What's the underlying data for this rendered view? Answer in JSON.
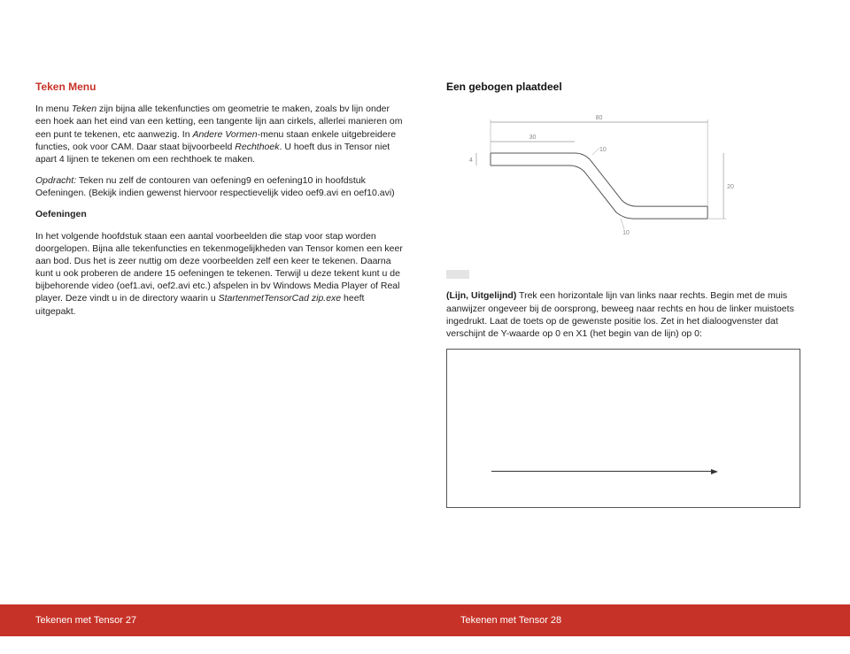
{
  "left": {
    "title": "Teken Menu",
    "p1_a": "In menu ",
    "p1_i1": "Teken",
    "p1_b": " zijn bijna alle tekenfuncties om geometrie te maken, zoals bv lijn onder een hoek aan het eind van een ketting, een tangente lijn aan cirkels, allerlei manieren om een punt te tekenen, etc aanwezig. In ",
    "p1_i2": "Andere Vormen",
    "p1_c": "-menu staan enkele uitgebreidere functies, ook voor CAM. Daar staat bijvoorbeeld ",
    "p1_i3": "Rechthoek",
    "p1_d": ". U hoeft dus in Tensor niet apart 4 lijnen te tekenen om een rechthoek te maken.",
    "p2_i": "Opdracht:",
    "p2": " Teken nu zelf de contouren van oefening9 en oefening10 in hoofdstuk Oefeningen. (Bekijk indien gewenst hiervoor respectievelijk video oef9.avi en oef10.avi)",
    "sub": "Oefeningen",
    "p3_a": "In het volgende hoofdstuk staan een aantal voorbeelden die stap voor stap worden doorgelopen. Bijna alle tekenfuncties en tekenmogelijkheden van Tensor komen een keer aan bod. Dus het is zeer nuttig om deze voorbeelden zelf een keer te tekenen. Daarna kunt u ook proberen de andere 15 oefeningen te tekenen. Terwijl u deze tekent kunt u de bijbehorende video (oef1.avi, oef2.avi etc.) afspelen in bv Windows Media Player of Real player. Deze vindt u in de directory waarin u ",
    "p3_i": "StartenmetTensorCad zip.exe",
    "p3_b": " heeft uitgepakt."
  },
  "right": {
    "title": "Een gebogen plaatdeel",
    "p1_b": "(Lijn, Uitgelijnd)",
    "p1": " Trek een horizontale lijn van links naar rechts. Begin met de muis aanwijzer ongeveer bij de oorsprong, beweeg naar rechts en hou de linker muistoets ingedrukt. Laat de toets op de gewenste positie los. Zet in het dialoogvenster dat verschijnt de Y-waarde op 0 en X1 (het begin van de lijn) op 0:"
  },
  "diagram": {
    "top_dim": "80",
    "left_dim": "30",
    "r_top": "10",
    "r_bot": "10",
    "right_v": "20",
    "thick": "4",
    "outline": "#555555",
    "dim_color": "#999999",
    "text_color": "#888888",
    "font_size": 7
  },
  "footer": {
    "left": "Tekenen met Tensor 27",
    "right": "Tekenen met Tensor 28"
  }
}
